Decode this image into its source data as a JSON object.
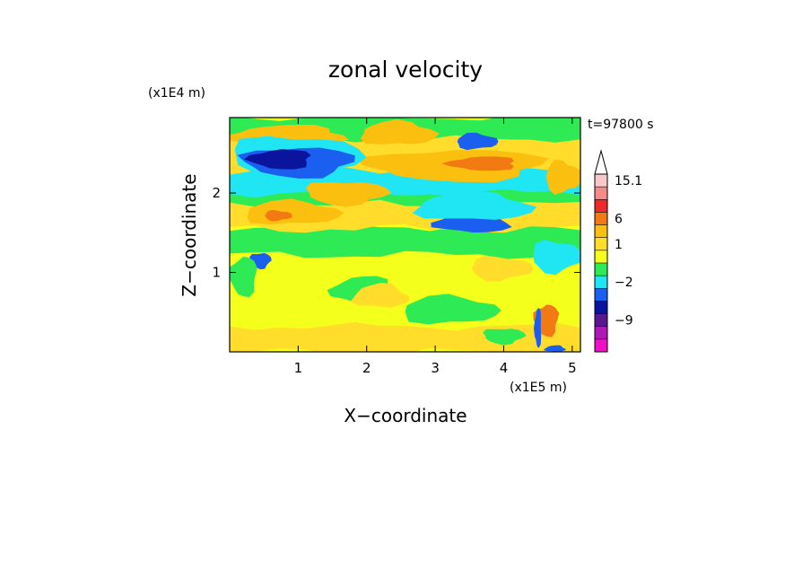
{
  "chart_data": {
    "type": "heatmap",
    "title": "zonal velocity",
    "xlabel": "X−coordinate",
    "ylabel": "Z−coordinate",
    "x_scale_label": "(x1E5 m)",
    "y_scale_label": "(x1E4 m)",
    "time_label": "t=97800 s",
    "xlim": [
      0,
      5.12
    ],
    "ylim": [
      0,
      2.95
    ],
    "x_ticks": [
      1,
      2,
      3,
      4,
      5
    ],
    "y_ticks": [
      1,
      2
    ],
    "colorbar": {
      "labels": [
        "15.1",
        "6",
        "1",
        "−2",
        "−9"
      ],
      "label_values": [
        15.1,
        6,
        1,
        -2,
        -9
      ],
      "levels_top_to_bottom": [
        {
          "value": 15.1,
          "color": "#f9c8c8"
        },
        {
          "value": 12,
          "color": "#f58a8a"
        },
        {
          "value": 9,
          "color": "#ee2a2a"
        },
        {
          "value": 6,
          "color": "#f27a12"
        },
        {
          "value": 3,
          "color": "#fbbf0f"
        },
        {
          "value": 1,
          "color": "#ffdd2a"
        },
        {
          "value": 0,
          "color": "#f5ff1c"
        },
        {
          "value": -1,
          "color": "#2eea55"
        },
        {
          "value": -2,
          "color": "#1fe6f2"
        },
        {
          "value": -4,
          "color": "#1a5ff0"
        },
        {
          "value": -6,
          "color": "#0b149c"
        },
        {
          "value": -9,
          "color": "#5a1890"
        },
        {
          "value": -12,
          "color": "#b018b8"
        },
        {
          "value": -15,
          "color": "#f010c8"
        }
      ]
    },
    "background_color": "#f5ff1c",
    "regions": [
      {
        "level": 1,
        "x": [
          0.0,
          5.12
        ],
        "z": [
          0.0,
          0.32
        ],
        "kind": "band"
      },
      {
        "level": -1,
        "x": [
          0.0,
          5.12
        ],
        "z": [
          1.22,
          1.58
        ],
        "kind": "band"
      },
      {
        "level": 1,
        "x": [
          0.0,
          5.12
        ],
        "z": [
          1.55,
          1.95
        ],
        "kind": "band"
      },
      {
        "level": -1,
        "x": [
          0.0,
          5.12
        ],
        "z": [
          1.85,
          2.25
        ],
        "kind": "band"
      },
      {
        "level": -2,
        "x": [
          0.0,
          5.12
        ],
        "z": [
          2.0,
          2.35
        ],
        "kind": "band"
      },
      {
        "level": 1,
        "x": [
          0.0,
          5.12
        ],
        "z": [
          2.3,
          2.72
        ],
        "kind": "band"
      },
      {
        "level": -1,
        "x": [
          0.0,
          5.12
        ],
        "z": [
          2.68,
          2.95
        ],
        "kind": "band"
      },
      {
        "level": 3,
        "x": [
          0.2,
          1.6
        ],
        "z": [
          1.6,
          1.9
        ]
      },
      {
        "level": 6,
        "x": [
          0.5,
          0.9
        ],
        "z": [
          1.65,
          1.78
        ]
      },
      {
        "level": 3,
        "x": [
          1.1,
          2.3
        ],
        "z": [
          1.85,
          2.15
        ]
      },
      {
        "level": 3,
        "x": [
          2.0,
          4.6
        ],
        "z": [
          2.15,
          2.55
        ]
      },
      {
        "level": 6,
        "x": [
          3.2,
          4.2
        ],
        "z": [
          2.28,
          2.46
        ]
      },
      {
        "level": 3,
        "x": [
          0.0,
          1.7
        ],
        "z": [
          2.6,
          2.85
        ]
      },
      {
        "level": 3,
        "x": [
          1.9,
          3.0
        ],
        "z": [
          2.6,
          2.9
        ]
      },
      {
        "level": 3,
        "x": [
          4.6,
          5.12
        ],
        "z": [
          2.0,
          2.4
        ]
      },
      {
        "level": -2,
        "x": [
          0.0,
          1.9
        ],
        "z": [
          2.18,
          2.72
        ]
      },
      {
        "level": -4,
        "x": [
          0.2,
          1.8
        ],
        "z": [
          2.2,
          2.58
        ]
      },
      {
        "level": -6,
        "x": [
          0.3,
          1.2
        ],
        "z": [
          2.3,
          2.55
        ]
      },
      {
        "level": -4,
        "x": [
          3.0,
          4.1
        ],
        "z": [
          1.5,
          1.75
        ]
      },
      {
        "level": -2,
        "x": [
          2.7,
          4.4
        ],
        "z": [
          1.65,
          2.0
        ]
      },
      {
        "level": -4,
        "x": [
          3.3,
          3.9
        ],
        "z": [
          2.55,
          2.75
        ]
      },
      {
        "level": -2,
        "x": [
          4.4,
          5.12
        ],
        "z": [
          1.0,
          1.4
        ]
      },
      {
        "level": -4,
        "x": [
          0.3,
          0.6
        ],
        "z": [
          1.05,
          1.25
        ]
      },
      {
        "level": -1,
        "x": [
          0.0,
          0.4
        ],
        "z": [
          0.7,
          1.2
        ]
      },
      {
        "level": -1,
        "x": [
          1.5,
          2.4
        ],
        "z": [
          0.6,
          0.95
        ]
      },
      {
        "level": 1,
        "x": [
          1.8,
          2.6
        ],
        "z": [
          0.55,
          0.85
        ]
      },
      {
        "level": -1,
        "x": [
          2.5,
          3.9
        ],
        "z": [
          0.35,
          0.7
        ]
      },
      {
        "level": 1,
        "x": [
          3.5,
          4.4
        ],
        "z": [
          0.9,
          1.2
        ]
      },
      {
        "level": -1,
        "x": [
          3.7,
          4.3
        ],
        "z": [
          0.1,
          0.3
        ]
      },
      {
        "level": 6,
        "x": [
          4.45,
          4.8
        ],
        "z": [
          0.2,
          0.6
        ]
      },
      {
        "level": -4,
        "x": [
          4.45,
          4.55
        ],
        "z": [
          0.05,
          0.55
        ]
      },
      {
        "level": -4,
        "x": [
          4.6,
          4.9
        ],
        "z": [
          0.0,
          0.08
        ]
      }
    ]
  }
}
